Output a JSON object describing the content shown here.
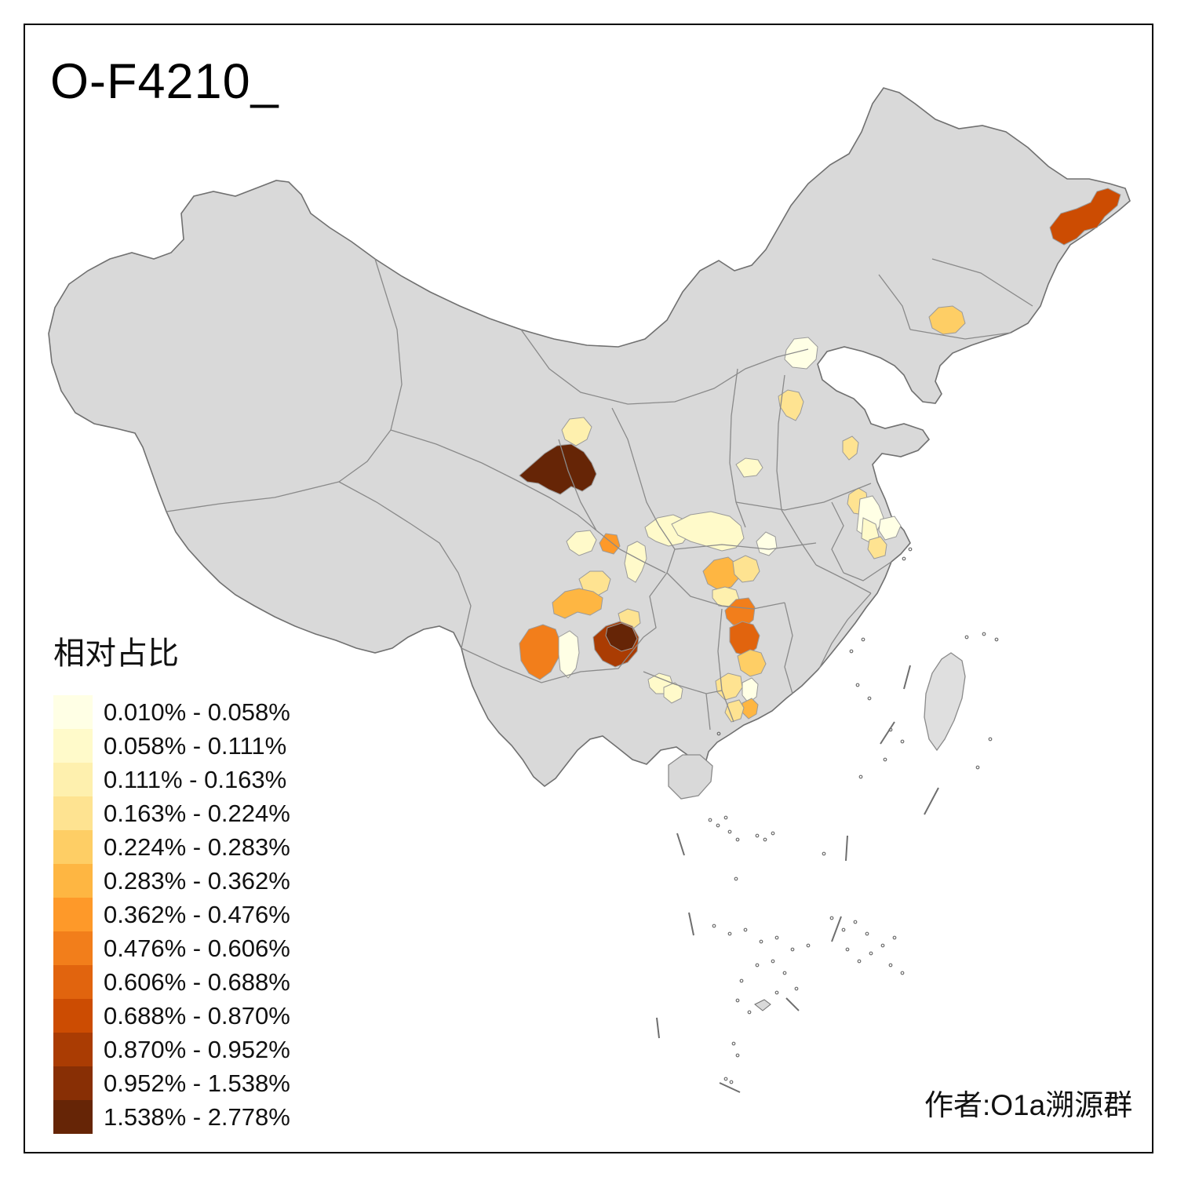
{
  "title": "O-F4210_",
  "attribution": "作者:O1a溯源群",
  "legend": {
    "title": "相对占比",
    "classes": [
      {
        "label": "0.010% - 0.058%",
        "color": "#FFFFE5"
      },
      {
        "label": "0.058% - 0.111%",
        "color": "#FFFACA"
      },
      {
        "label": "0.111% - 0.163%",
        "color": "#FEF0AE"
      },
      {
        "label": "0.163% - 0.224%",
        "color": "#FEE391"
      },
      {
        "label": "0.224% - 0.283%",
        "color": "#FECE65"
      },
      {
        "label": "0.283% - 0.362%",
        "color": "#FEB642"
      },
      {
        "label": "0.362% - 0.476%",
        "color": "#FE9929"
      },
      {
        "label": "0.476% - 0.606%",
        "color": "#F27E1B"
      },
      {
        "label": "0.606% - 0.688%",
        "color": "#E1640E"
      },
      {
        "label": "0.688% - 0.870%",
        "color": "#CC4C02"
      },
      {
        "label": "0.870% - 0.952%",
        "color": "#AA3C03"
      },
      {
        "label": "0.952% - 1.538%",
        "color": "#882F05"
      },
      {
        "label": "1.538% - 2.778%",
        "color": "#662506"
      }
    ]
  },
  "map": {
    "base_fill": "#D9D9D9",
    "island_fill": "#DFDFDF",
    "province_border": "#8A8A8A",
    "outline": "#707070",
    "sea": "#FFFFFF",
    "regions": {
      "heilongjiang-east": 10,
      "jilin-city": 5,
      "beijing": 1,
      "shijiazhuang": 4,
      "shanxi-southeast": 2,
      "shandong-south": 4,
      "jiangsu-north": 4,
      "jiangsu-middle-cream": 1,
      "jiangsu-middle-pale": 2,
      "shanghai-area": 1,
      "jiangsu-south": 4,
      "qinghai-haidong": 3,
      "qinghai-gansu-dark": 13,
      "gansu-tianshui": 2,
      "gansu-longnan": 7,
      "shaanxi-hanzhong": 2,
      "hubei-northwest": 2,
      "henan-south": 1,
      "sichuan-guangyuan": 2,
      "sichuan-chengdu": 4,
      "sichuan-yaan": 6,
      "sichuan-south": 4,
      "yunnan-chuxiong": 8,
      "yunnan-kunming-west": 1,
      "guizhou-west-brick": 11,
      "guizhou-darkest": 13,
      "guizhou-anshun": 2,
      "guizhou-qiannan": 2,
      "hubei-wuhan": 6,
      "hubei-east": 4,
      "hubei-south-tail": 3,
      "hunan-north": 8,
      "hunan-middle-deep": 9,
      "hunan-hengyang": 5,
      "hunan-south-light": 4,
      "guangdong-north-cream": 1,
      "guangdong-shaoguan": 6,
      "guangdong-qingyuan": 4
    }
  }
}
